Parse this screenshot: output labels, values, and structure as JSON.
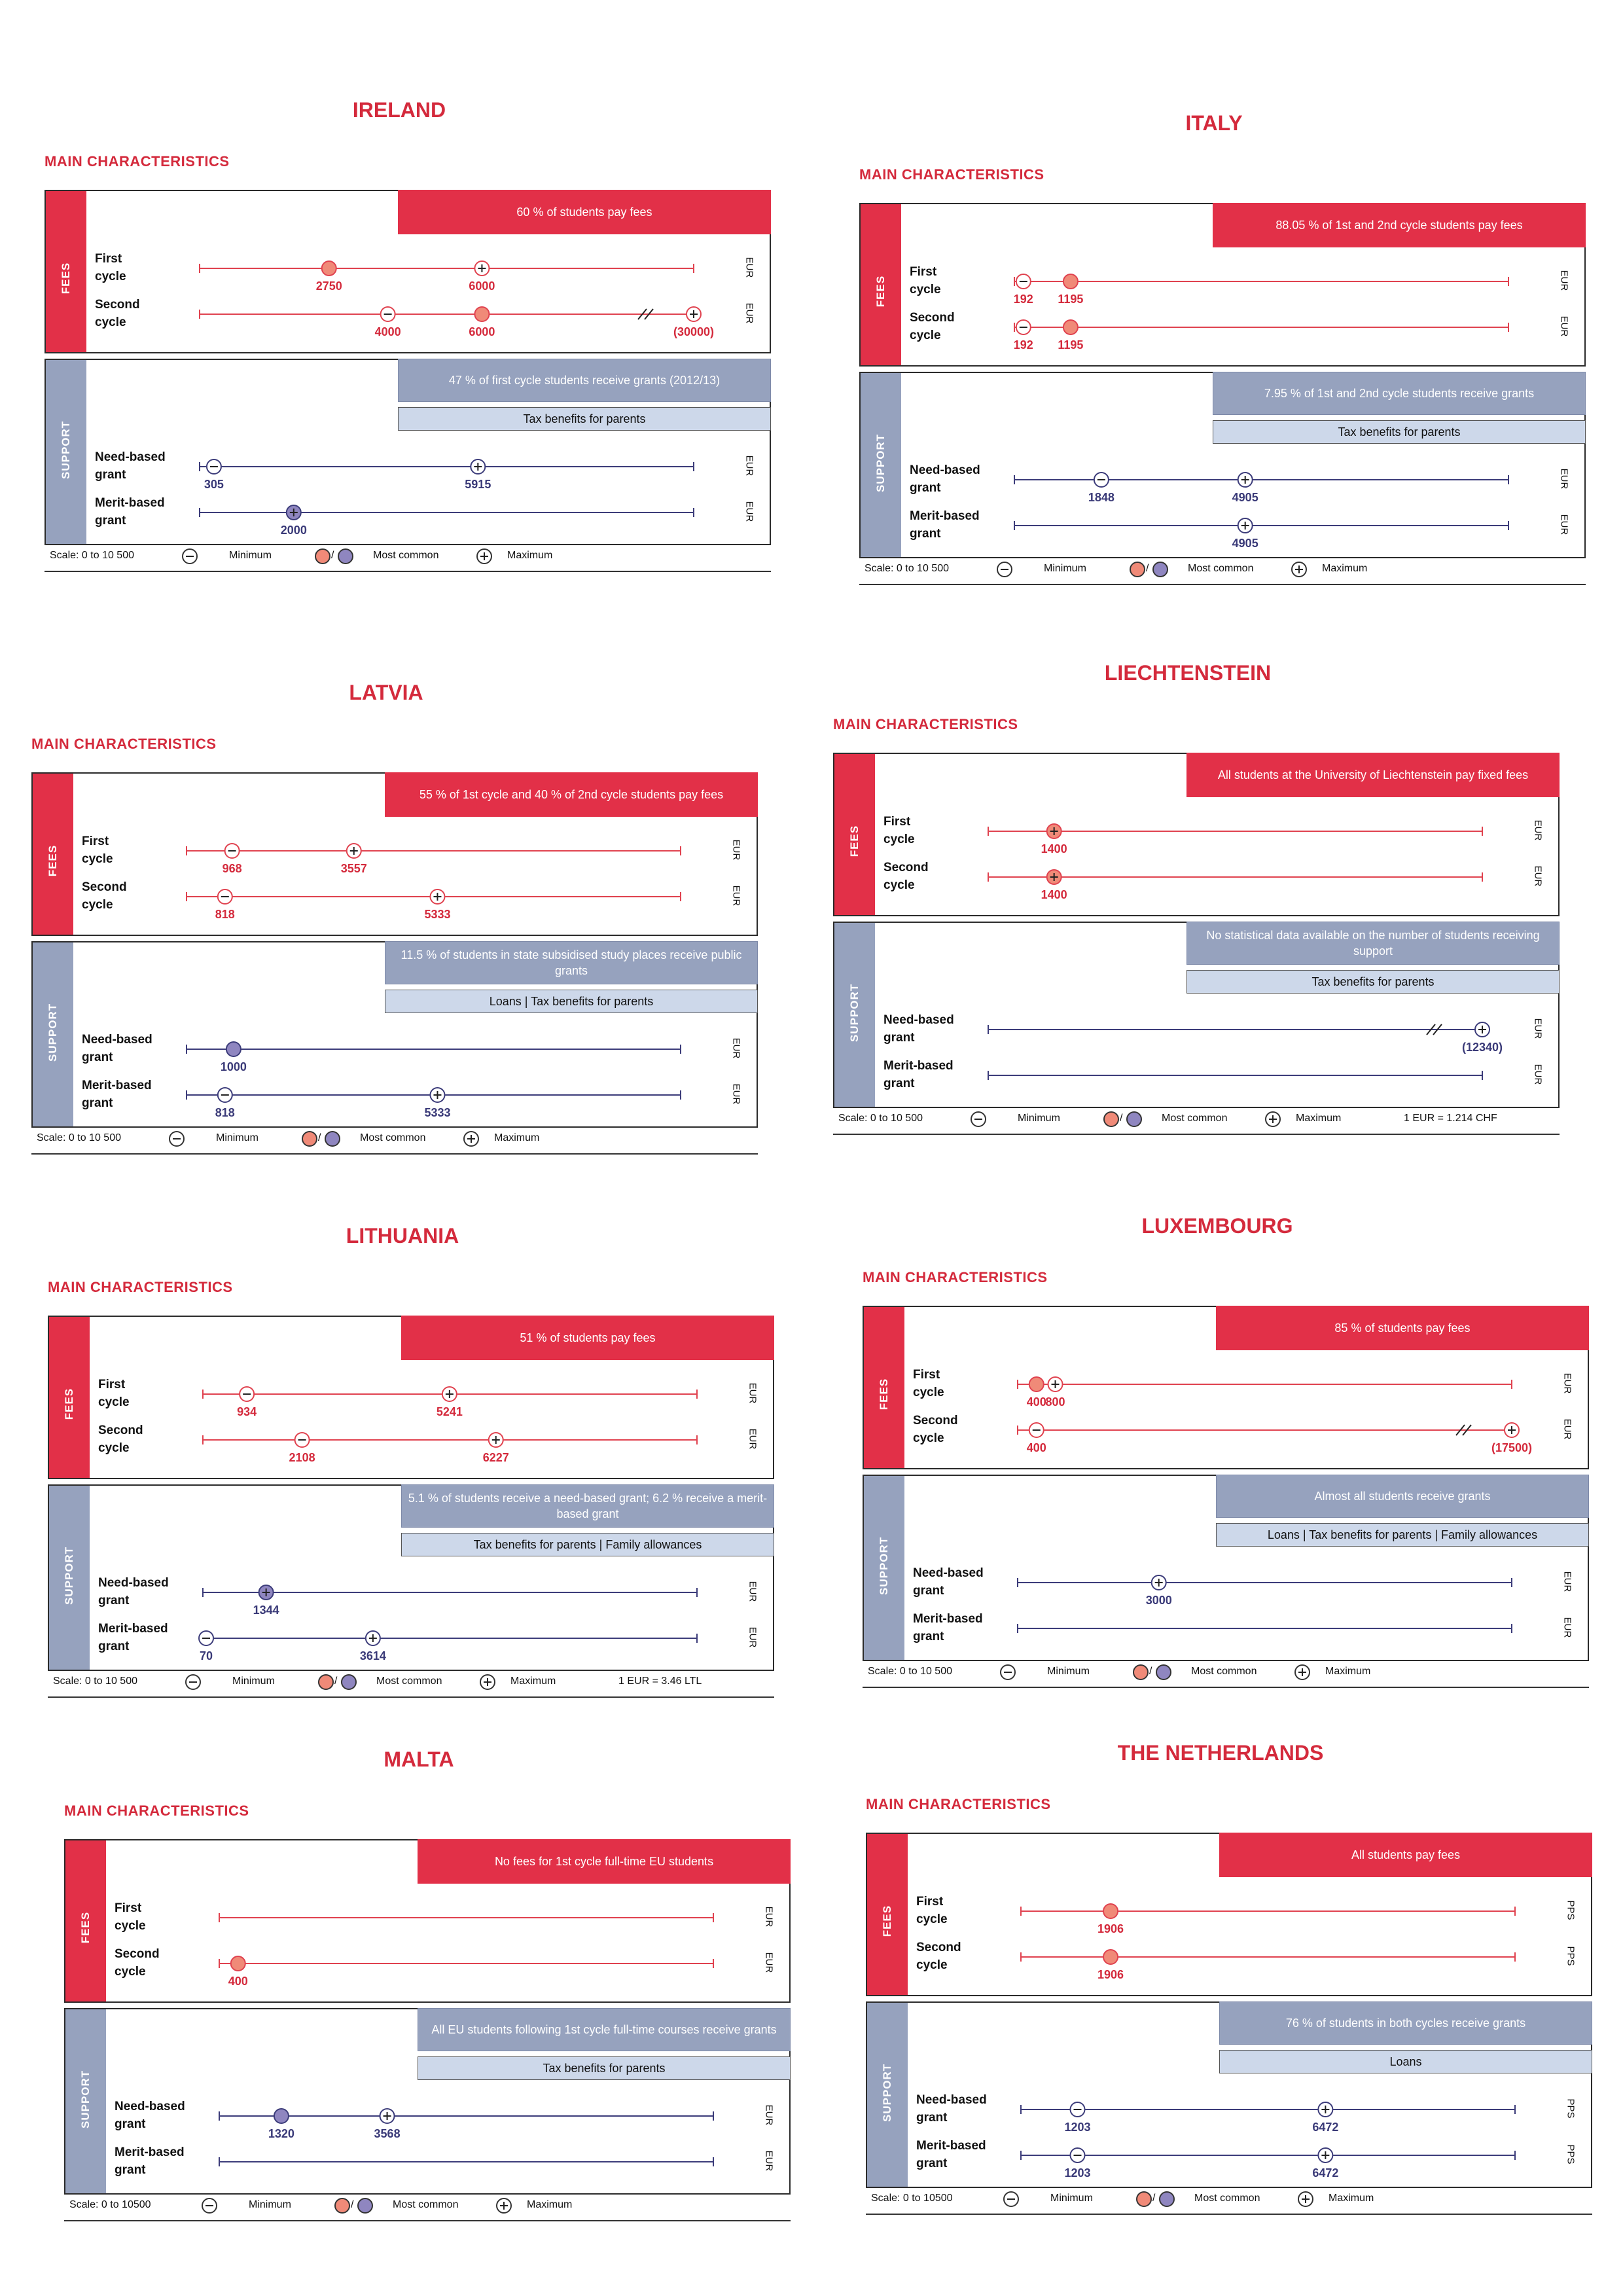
{
  "common": {
    "section_title": "MAIN CHARACTERISTICS",
    "fees_label": "FEES",
    "support_label": "SUPPORT",
    "first_cycle": "First\ncycle",
    "second_cycle": "Second\ncycle",
    "need_based": "Need-based\ngrant",
    "merit_based": "Merit-based\ngrant",
    "legend_minimum": "Minimum",
    "legend_most_common": "Most common",
    "legend_maximum": "Maximum",
    "legend_sep": "/",
    "colors": {
      "fees": "#e23048",
      "support": "#96a2be",
      "fee_line": "#e0424f",
      "support_line": "#3c3c7a",
      "fee_text": "#d42a3c",
      "support_text": "#3a3a78"
    }
  },
  "chart_data": [
    {
      "type": "dot-range",
      "country": "IRELAND",
      "scale": "Scale: 0 to 10 500",
      "xlim": [
        0,
        10500
      ],
      "fees_box": "60 % of students pay fees",
      "support_boxes": [
        "47 % of first cycle students receive grants (2012/13)",
        "Tax benefits for parents"
      ],
      "conversion": "",
      "rows": [
        {
          "group": "fees",
          "label": "First\ncycle",
          "unit": "EUR",
          "markers": [
            {
              "value": 2750,
              "kind": "common",
              "label": "2750"
            },
            {
              "value": 6000,
              "kind": "max",
              "label": "6000"
            }
          ]
        },
        {
          "group": "fees",
          "label": "Second\ncycle",
          "unit": "EUR",
          "markers": [
            {
              "value": 4000,
              "kind": "min",
              "label": "4000"
            },
            {
              "value": 6000,
              "kind": "common",
              "label": "6000"
            },
            {
              "value": 30000,
              "kind": "max",
              "label": "(30000)",
              "off_scale": true
            }
          ]
        },
        {
          "group": "support",
          "label": "Need-based\ngrant",
          "unit": "EUR",
          "markers": [
            {
              "value": 305,
              "kind": "min",
              "label": "305"
            },
            {
              "value": 5915,
              "kind": "max",
              "label": "5915"
            }
          ]
        },
        {
          "group": "support",
          "label": "Merit-based\ngrant",
          "unit": "EUR",
          "markers": [
            {
              "value": 2000,
              "kind": "both",
              "label": "2000"
            }
          ]
        }
      ]
    },
    {
      "type": "dot-range",
      "country": "ITALY",
      "scale": "Scale: 0 to 10 500",
      "xlim": [
        0,
        10500
      ],
      "fees_box": "88.05 % of 1st and 2nd cycle students pay fees",
      "support_boxes": [
        "7.95 % of 1st and 2nd cycle students receive grants",
        "Tax benefits for parents"
      ],
      "conversion": "",
      "rows": [
        {
          "group": "fees",
          "label": "First\ncycle",
          "unit": "EUR",
          "markers": [
            {
              "value": 192,
              "kind": "min",
              "label": "192"
            },
            {
              "value": 1195,
              "kind": "common",
              "label": "1195"
            }
          ]
        },
        {
          "group": "fees",
          "label": "Second\ncycle",
          "unit": "EUR",
          "markers": [
            {
              "value": 192,
              "kind": "min",
              "label": "192"
            },
            {
              "value": 1195,
              "kind": "common",
              "label": "1195"
            }
          ]
        },
        {
          "group": "support",
          "label": "Need-based\ngrant",
          "unit": "EUR",
          "markers": [
            {
              "value": 1848,
              "kind": "min",
              "label": "1848"
            },
            {
              "value": 4905,
              "kind": "max",
              "label": "4905"
            }
          ]
        },
        {
          "group": "support",
          "label": "Merit-based\ngrant",
          "unit": "EUR",
          "markers": [
            {
              "value": 4905,
              "kind": "max",
              "label": "4905"
            }
          ]
        }
      ]
    },
    {
      "type": "dot-range",
      "country": "LATVIA",
      "scale": "Scale: 0 to 10 500",
      "xlim": [
        0,
        10500
      ],
      "fees_box": "55 % of 1st cycle and 40 % of 2nd cycle students pay fees",
      "support_boxes": [
        "11.5 % of students in state subsidised study places receive public grants",
        "Loans | Tax benefits for parents"
      ],
      "conversion": "",
      "rows": [
        {
          "group": "fees",
          "label": "First\ncycle",
          "unit": "EUR",
          "markers": [
            {
              "value": 968,
              "kind": "min",
              "label": "968"
            },
            {
              "value": 3557,
              "kind": "max",
              "label": "3557"
            }
          ]
        },
        {
          "group": "fees",
          "label": "Second\ncycle",
          "unit": "EUR",
          "markers": [
            {
              "value": 818,
              "kind": "min",
              "label": "818"
            },
            {
              "value": 5333,
              "kind": "max",
              "label": "5333"
            }
          ]
        },
        {
          "group": "support",
          "label": "Need-based\ngrant",
          "unit": "EUR",
          "markers": [
            {
              "value": 1000,
              "kind": "common",
              "label": "1000"
            }
          ]
        },
        {
          "group": "support",
          "label": "Merit-based\ngrant",
          "unit": "EUR",
          "markers": [
            {
              "value": 818,
              "kind": "min",
              "label": "818"
            },
            {
              "value": 5333,
              "kind": "max",
              "label": "5333"
            }
          ]
        }
      ]
    },
    {
      "type": "dot-range",
      "country": "LIECHTENSTEIN",
      "scale": "Scale: 0 to 10 500",
      "xlim": [
        0,
        10500
      ],
      "fees_box": "All students at the University of Liechtenstein pay fixed fees",
      "support_boxes": [
        "No statistical data available on the number of students receiving support",
        "Tax benefits for parents"
      ],
      "conversion": "1 EUR = 1.214 CHF",
      "rows": [
        {
          "group": "fees",
          "label": "First\ncycle",
          "unit": "EUR",
          "markers": [
            {
              "value": 1400,
              "kind": "both",
              "label": "1400"
            }
          ]
        },
        {
          "group": "fees",
          "label": "Second\ncycle",
          "unit": "EUR",
          "markers": [
            {
              "value": 1400,
              "kind": "both",
              "label": "1400"
            }
          ]
        },
        {
          "group": "support",
          "label": "Need-based\ngrant",
          "unit": "EUR",
          "markers": [
            {
              "value": 12340,
              "kind": "max",
              "label": "(12340)",
              "off_scale": true
            }
          ]
        },
        {
          "group": "support",
          "label": "Merit-based\ngrant",
          "unit": "EUR",
          "markers": []
        }
      ]
    },
    {
      "type": "dot-range",
      "country": "LITHUANIA",
      "scale": "Scale: 0 to 10 500",
      "xlim": [
        0,
        10500
      ],
      "fees_box": "51 % of students pay fees",
      "support_boxes": [
        "5.1 % of students receive a need-based grant; 6.2 % receive a merit-based grant",
        "Tax benefits for parents | Family allowances"
      ],
      "conversion": "1 EUR = 3.46 LTL",
      "rows": [
        {
          "group": "fees",
          "label": "First\ncycle",
          "unit": "EUR",
          "markers": [
            {
              "value": 934,
              "kind": "min",
              "label": "934"
            },
            {
              "value": 5241,
              "kind": "max",
              "label": "5241"
            }
          ]
        },
        {
          "group": "fees",
          "label": "Second\ncycle",
          "unit": "EUR",
          "markers": [
            {
              "value": 2108,
              "kind": "min",
              "label": "2108"
            },
            {
              "value": 6227,
              "kind": "max",
              "label": "6227"
            }
          ]
        },
        {
          "group": "support",
          "label": "Need-based\ngrant",
          "unit": "EUR",
          "markers": [
            {
              "value": 1344,
              "kind": "both",
              "label": "1344"
            }
          ]
        },
        {
          "group": "support",
          "label": "Merit-based\ngrant",
          "unit": "EUR",
          "markers": [
            {
              "value": 70,
              "kind": "min",
              "label": "70"
            },
            {
              "value": 3614,
              "kind": "max",
              "label": "3614"
            }
          ]
        }
      ]
    },
    {
      "type": "dot-range",
      "country": "LUXEMBOURG",
      "scale": "Scale: 0 to 10 500",
      "xlim": [
        0,
        10500
      ],
      "fees_box": "85 % of students pay fees",
      "support_boxes": [
        "Almost all students receive grants",
        "Loans | Tax benefits for parents | Family allowances"
      ],
      "conversion": "",
      "rows": [
        {
          "group": "fees",
          "label": "First\ncycle",
          "unit": "EUR",
          "markers": [
            {
              "value": 400,
              "kind": "common",
              "label": "400"
            },
            {
              "value": 800,
              "kind": "max",
              "label": "800"
            }
          ]
        },
        {
          "group": "fees",
          "label": "Second\ncycle",
          "unit": "EUR",
          "markers": [
            {
              "value": 400,
              "kind": "min",
              "label": "400"
            },
            {
              "value": 17500,
              "kind": "max",
              "label": "(17500)",
              "off_scale": true
            }
          ]
        },
        {
          "group": "support",
          "label": "Need-based\ngrant",
          "unit": "EUR",
          "markers": [
            {
              "value": 3000,
              "kind": "max",
              "label": "3000"
            }
          ]
        },
        {
          "group": "support",
          "label": "Merit-based\ngrant",
          "unit": "EUR",
          "markers": []
        }
      ]
    },
    {
      "type": "dot-range",
      "country": "MALTA",
      "scale": "Scale: 0 to 10500",
      "xlim": [
        0,
        10500
      ],
      "fees_box": "No fees for 1st cycle full-time EU students",
      "support_boxes": [
        "All EU students following 1st cycle full-time courses receive grants",
        "Tax benefits for parents"
      ],
      "conversion": "",
      "rows": [
        {
          "group": "fees",
          "label": "First\ncycle",
          "unit": "EUR",
          "markers": []
        },
        {
          "group": "fees",
          "label": "Second\ncycle",
          "unit": "EUR",
          "markers": [
            {
              "value": 400,
              "kind": "common",
              "label": "400"
            }
          ]
        },
        {
          "group": "support",
          "label": "Need-based\ngrant",
          "unit": "EUR",
          "markers": [
            {
              "value": 1320,
              "kind": "common",
              "label": "1320"
            },
            {
              "value": 3568,
              "kind": "max",
              "label": "3568"
            }
          ]
        },
        {
          "group": "support",
          "label": "Merit-based\ngrant",
          "unit": "EUR",
          "markers": []
        }
      ]
    },
    {
      "type": "dot-range",
      "country": "THE NETHERLANDS",
      "scale": "Scale: 0 to 10500",
      "xlim": [
        0,
        10500
      ],
      "fees_box": "All students pay fees",
      "support_boxes": [
        "76 % of students in both cycles receive grants",
        "Loans"
      ],
      "conversion": "",
      "rows": [
        {
          "group": "fees",
          "label": "First\ncycle",
          "unit": "PPS",
          "markers": [
            {
              "value": 1906,
              "kind": "common",
              "label": "1906"
            }
          ]
        },
        {
          "group": "fees",
          "label": "Second\ncycle",
          "unit": "PPS",
          "markers": [
            {
              "value": 1906,
              "kind": "common",
              "label": "1906"
            }
          ]
        },
        {
          "group": "support",
          "label": "Need-based\ngrant",
          "unit": "PPS",
          "markers": [
            {
              "value": 1203,
              "kind": "min",
              "label": "1203"
            },
            {
              "value": 6472,
              "kind": "max",
              "label": "6472"
            }
          ]
        },
        {
          "group": "support",
          "label": "Merit-based\ngrant",
          "unit": "PPS",
          "markers": [
            {
              "value": 1203,
              "kind": "min",
              "label": "1203"
            },
            {
              "value": 6472,
              "kind": "max",
              "label": "6472"
            }
          ]
        }
      ]
    }
  ]
}
